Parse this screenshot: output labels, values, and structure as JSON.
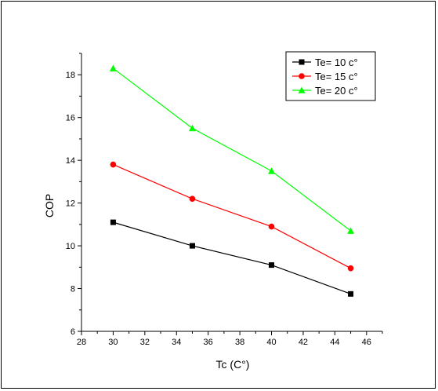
{
  "chart_data": {
    "type": "line",
    "xlabel": "Tc (C°)",
    "ylabel": "COP",
    "xlim": [
      28,
      47
    ],
    "ylim": [
      6,
      19
    ],
    "xticks": [
      28,
      30,
      32,
      34,
      36,
      38,
      40,
      42,
      44,
      46
    ],
    "yticks": [
      6,
      8,
      10,
      12,
      14,
      16,
      18
    ],
    "x": [
      30,
      35,
      40,
      45
    ],
    "grid": false,
    "legend_position": "top-right",
    "series": [
      {
        "name": "Te= 10 c°",
        "values": [
          11.1,
          10.0,
          9.1,
          7.75
        ],
        "color": "#000000",
        "marker": "square"
      },
      {
        "name": "Te= 15 c°",
        "values": [
          13.8,
          12.2,
          10.9,
          8.95
        ],
        "color": "#ff0000",
        "marker": "circle"
      },
      {
        "name": "Te= 20 c°",
        "values": [
          18.3,
          15.5,
          13.5,
          10.7
        ],
        "color": "#00ff00",
        "marker": "triangle"
      }
    ]
  }
}
